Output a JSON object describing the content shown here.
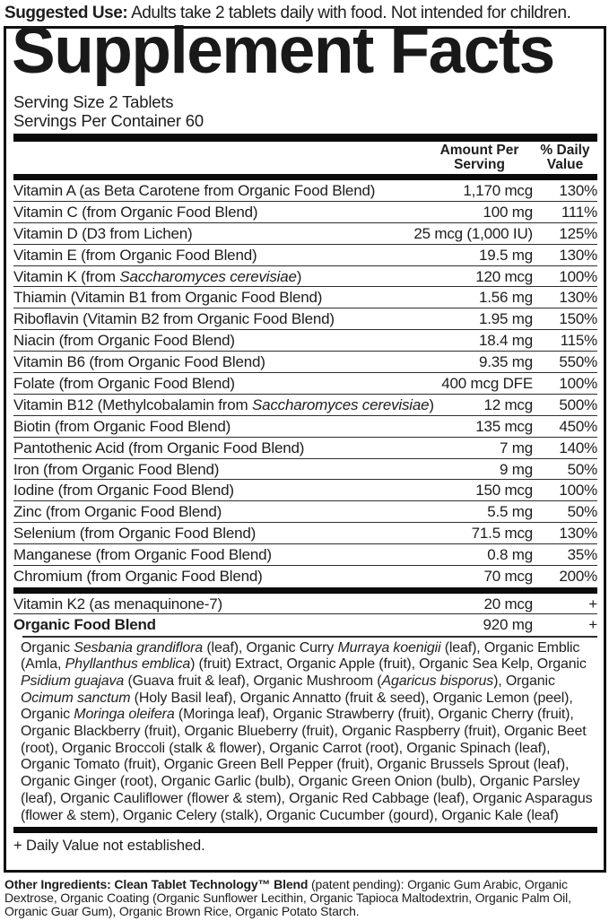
{
  "suggested_use": {
    "label": "Suggested Use:",
    "text": " Adults take 2 tablets daily with food. Not intended for children."
  },
  "panel": {
    "title": "Supplement Facts",
    "serving_size": "Serving Size 2 Tablets",
    "servings_per_container": "Servings Per Container 60",
    "columns": {
      "amount_line1": "Amount Per",
      "amount_line2": "Serving",
      "dv_line1": "% Daily",
      "dv_line2": "Value"
    },
    "rows": [
      {
        "name": [
          {
            "t": "Vitamin A (as Beta Carotene from Organic Food Blend)"
          }
        ],
        "amount": "1,170 mcg",
        "dv": "130%"
      },
      {
        "name": [
          {
            "t": "Vitamin C (from Organic Food Blend)"
          }
        ],
        "amount": "100 mg",
        "dv": "111%"
      },
      {
        "name": [
          {
            "t": "Vitamin D (D3 from Lichen)"
          }
        ],
        "amount": "25 mcg (1,000 IU)",
        "dv": "125%"
      },
      {
        "name": [
          {
            "t": "Vitamin E (from Organic Food Blend)"
          }
        ],
        "amount": "19.5 mg",
        "dv": "130%"
      },
      {
        "name": [
          {
            "t": "Vitamin K (from "
          },
          {
            "t": "Saccharomyces cerevisiae",
            "i": true
          },
          {
            "t": ")"
          }
        ],
        "amount": "120 mcg",
        "dv": "100%"
      },
      {
        "name": [
          {
            "t": "Thiamin (Vitamin B1 from Organic Food Blend)"
          }
        ],
        "amount": "1.56 mg",
        "dv": "130%"
      },
      {
        "name": [
          {
            "t": "Riboflavin (Vitamin B2 from Organic Food Blend)"
          }
        ],
        "amount": "1.95 mg",
        "dv": "150%"
      },
      {
        "name": [
          {
            "t": "Niacin (from Organic Food Blend)"
          }
        ],
        "amount": "18.4 mg",
        "dv": "115%"
      },
      {
        "name": [
          {
            "t": "Vitamin B6 (from Organic Food Blend)"
          }
        ],
        "amount": "9.35 mg",
        "dv": "550%"
      },
      {
        "name": [
          {
            "t": "Folate (from Organic Food Blend)"
          }
        ],
        "amount": "400 mcg DFE",
        "dv": "100%"
      },
      {
        "name": [
          {
            "t": "Vitamin B12 (Methylcobalamin from "
          },
          {
            "t": "Saccharomyces cerevisiae",
            "i": true
          },
          {
            "t": ")"
          }
        ],
        "amount": "12 mcg",
        "dv": "500%"
      },
      {
        "name": [
          {
            "t": "Biotin (from Organic Food Blend)"
          }
        ],
        "amount": "135 mcg",
        "dv": "450%"
      },
      {
        "name": [
          {
            "t": "Pantothenic Acid (from Organic Food Blend)"
          }
        ],
        "amount": "7 mg",
        "dv": "140%"
      },
      {
        "name": [
          {
            "t": "Iron (from Organic Food Blend)"
          }
        ],
        "amount": "9 mg",
        "dv": "50%"
      },
      {
        "name": [
          {
            "t": "Iodine (from Organic Food Blend)"
          }
        ],
        "amount": "150 mcg",
        "dv": "100%"
      },
      {
        "name": [
          {
            "t": "Zinc (from Organic Food Blend)"
          }
        ],
        "amount": "5.5 mg",
        "dv": "50%"
      },
      {
        "name": [
          {
            "t": "Selenium (from Organic Food Blend)"
          }
        ],
        "amount": "71.5 mcg",
        "dv": "130%"
      },
      {
        "name": [
          {
            "t": "Manganese (from Organic Food Blend)"
          }
        ],
        "amount": "0.8 mg",
        "dv": "35%"
      },
      {
        "name": [
          {
            "t": "Chromium (from Organic Food Blend)"
          }
        ],
        "amount": "70 mcg",
        "dv": "200%"
      }
    ],
    "k2_row": {
      "name": [
        {
          "t": "Vitamin K2 (as menaquinone-7)"
        }
      ],
      "amount": "20 mcg",
      "dv": "+"
    },
    "blend_row": {
      "name": [
        {
          "t": "Organic Food Blend"
        }
      ],
      "amount": "920 mg",
      "dv": "+"
    },
    "blend_description": [
      {
        "t": "Organic "
      },
      {
        "t": "Sesbania grandiflora",
        "i": true
      },
      {
        "t": " (leaf), Organic Curry "
      },
      {
        "t": "Murraya koenigii",
        "i": true
      },
      {
        "t": " (leaf), Organic Emblic (Amla, "
      },
      {
        "t": "Phyllanthus emblica",
        "i": true
      },
      {
        "t": ") (fruit) Extract, Organic Apple (fruit), Organic Sea Kelp, Organic "
      },
      {
        "t": "Psidium guajava",
        "i": true
      },
      {
        "t": " (Guava fruit & leaf), Organic Mushroom ("
      },
      {
        "t": "Agaricus bisporus",
        "i": true
      },
      {
        "t": "), Organic "
      },
      {
        "t": "Ocimum sanctum",
        "i": true
      },
      {
        "t": " (Holy Basil leaf), Organic Annatto (fruit & seed), Organic Lemon (peel), Organic "
      },
      {
        "t": "Moringa oleifera",
        "i": true
      },
      {
        "t": " (Moringa leaf), Organic Strawberry (fruit), Organic Cherry (fruit), Organic Blackberry (fruit), Organic Blueberry (fruit), Organic Raspberry (fruit), Organic Beet (root), Organic Broccoli (stalk & flower), Organic Carrot (root), Organic Spinach (leaf), Organic Tomato (fruit), Organic Green Bell Pepper (fruit), Organic Brussels Sprout (leaf), Organic Ginger (root), Organic Garlic (bulb), Organic Green Onion (bulb), Organic Parsley (leaf), Organic Cauliflower (flower & stem), Organic Red Cabbage (leaf), Organic Asparagus (flower & stem), Organic Celery (stalk), Organic Cucumber (gourd), Organic Kale (leaf)"
      }
    ],
    "footnote": "+ Daily Value not established."
  },
  "other_ingredients": {
    "label": "Other Ingredients: Clean Tablet Technology™ Blend",
    "text": " (patent pending): Organic Gum Arabic, Organic Dextrose, Organic Coating (Organic Sunflower Lecithin, Organic Tapioca Maltodextrin, Organic Palm Oil, Organic Guar Gum), Organic Brown Rice, Organic Potato Starch."
  },
  "colors": {
    "text": "#1d1d1d",
    "thick_bar": "#0b0b0b",
    "thin_rule": "#2d2d2d",
    "border": "#111111",
    "background": "#ffffff"
  }
}
